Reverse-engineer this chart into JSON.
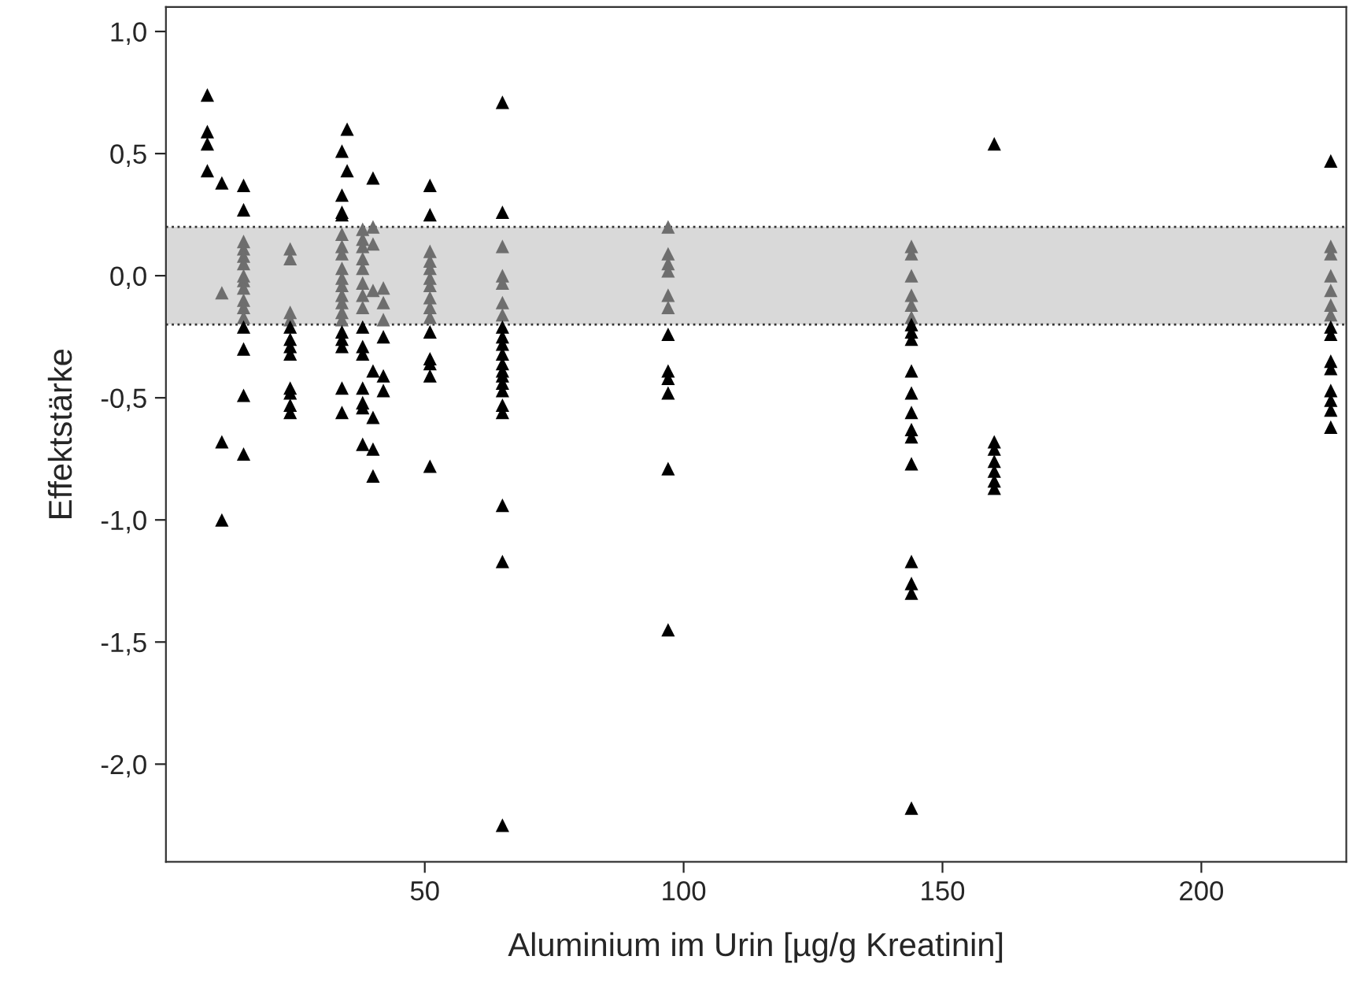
{
  "chart_data": {
    "type": "scatter",
    "xlabel": "Aluminium im Urin [µg/g Kreatinin]",
    "ylabel": "Effektstärke",
    "xlim": [
      0,
      228
    ],
    "ylim": [
      -2.4,
      1.1
    ],
    "xticks": [
      50,
      100,
      150,
      200
    ],
    "yticks": [
      {
        "value": 1.0,
        "label": "1,0"
      },
      {
        "value": 0.5,
        "label": "0,5"
      },
      {
        "value": 0.0,
        "label": "0,0"
      },
      {
        "value": -0.5,
        "label": "-0,5"
      },
      {
        "value": -1.0,
        "label": "-1,0"
      },
      {
        "value": -1.5,
        "label": "-1,5"
      },
      {
        "value": -2.0,
        "label": "-2,0"
      }
    ],
    "grid": false,
    "marker": "triangle",
    "bands": [
      {
        "axis": "y",
        "from": -0.2,
        "to": 0.2,
        "color": "#d9d9d9"
      }
    ],
    "ref_lines": [
      {
        "axis": "y",
        "value": 0.2,
        "color": "#333333",
        "line_style": "dotted"
      },
      {
        "axis": "y",
        "value": -0.2,
        "color": "#333333",
        "line_style": "dotted"
      }
    ],
    "series": [
      {
        "color": "#6e6e6e",
        "x": [
          10.8,
          15,
          15,
          15,
          15,
          15,
          15,
          15,
          15,
          15,
          15,
          24,
          24,
          24,
          24,
          34,
          34,
          34,
          34,
          34,
          34,
          34,
          34,
          34,
          34,
          38,
          38,
          38,
          38,
          38,
          38,
          38,
          38,
          40,
          40,
          40,
          42,
          42,
          42,
          51,
          51,
          51,
          51,
          51,
          51,
          51,
          51,
          65,
          65,
          65,
          65,
          65,
          97,
          97,
          97,
          97,
          97,
          97,
          144,
          144,
          144,
          144,
          144,
          144,
          225,
          225,
          225,
          225,
          225,
          225
        ],
        "values": [
          -0.07,
          0.14,
          0.11,
          0.08,
          0.05,
          0.0,
          -0.02,
          -0.05,
          -0.1,
          -0.13,
          -0.17,
          0.11,
          0.07,
          -0.15,
          -0.18,
          0.17,
          0.12,
          0.09,
          0.03,
          -0.01,
          -0.04,
          -0.08,
          -0.11,
          -0.15,
          -0.18,
          0.19,
          0.15,
          0.12,
          0.07,
          0.03,
          -0.03,
          -0.08,
          -0.13,
          0.2,
          0.13,
          -0.06,
          -0.05,
          -0.11,
          -0.18,
          0.1,
          0.06,
          0.03,
          -0.01,
          -0.04,
          -0.09,
          -0.13,
          -0.17,
          0.12,
          0.0,
          -0.03,
          -0.11,
          -0.16,
          0.2,
          0.09,
          0.05,
          0.02,
          -0.08,
          -0.13,
          0.12,
          0.09,
          0.0,
          -0.08,
          -0.12,
          -0.17,
          0.12,
          0.09,
          0.0,
          -0.06,
          -0.12,
          -0.16
        ]
      },
      {
        "color": "#000000",
        "x": [
          8,
          8,
          8,
          8,
          10.8,
          10.8,
          10.8,
          15,
          15,
          15,
          15,
          15,
          15,
          24,
          24,
          24,
          24,
          24,
          24,
          24,
          24,
          34,
          34,
          34,
          34,
          34,
          34,
          34,
          34,
          34,
          35,
          35,
          38,
          38,
          38,
          38,
          38,
          38,
          38,
          40,
          40,
          40,
          40,
          40,
          42,
          42,
          42,
          51,
          51,
          51,
          51,
          51,
          51,
          51,
          65,
          65,
          65,
          65,
          65,
          65,
          65,
          65,
          65,
          65,
          65,
          65,
          65,
          65,
          65,
          65,
          97,
          97,
          97,
          97,
          97,
          97,
          144,
          144,
          144,
          144,
          144,
          144,
          144,
          144,
          144,
          144,
          144,
          144,
          144,
          160,
          160,
          160,
          160,
          160,
          160,
          160,
          225,
          225,
          225,
          225,
          225,
          225,
          225,
          225,
          225
        ],
        "values": [
          0.74,
          0.59,
          0.54,
          0.43,
          0.38,
          -0.68,
          -1.0,
          0.37,
          0.27,
          -0.21,
          -0.3,
          -0.49,
          -0.73,
          -0.21,
          -0.26,
          -0.29,
          -0.32,
          -0.46,
          -0.48,
          -0.53,
          -0.56,
          0.51,
          0.33,
          0.26,
          0.25,
          -0.23,
          -0.26,
          -0.29,
          -0.46,
          -0.56,
          0.6,
          0.43,
          -0.21,
          -0.29,
          -0.32,
          -0.46,
          -0.52,
          -0.54,
          -0.69,
          0.4,
          -0.39,
          -0.58,
          -0.71,
          -0.82,
          -0.25,
          -0.41,
          -0.47,
          0.37,
          0.25,
          -0.23,
          -0.34,
          -0.36,
          -0.41,
          -0.78,
          0.71,
          0.26,
          -0.21,
          -0.25,
          -0.28,
          -0.32,
          -0.36,
          -0.39,
          -0.41,
          -0.44,
          -0.47,
          -0.53,
          -0.56,
          -0.94,
          -1.17,
          -2.25,
          -0.24,
          -0.39,
          -0.42,
          -0.48,
          -0.79,
          -1.45,
          -0.2,
          -0.23,
          -0.26,
          -0.39,
          -0.48,
          -0.56,
          -0.63,
          -0.66,
          -0.77,
          -1.17,
          -1.26,
          -1.3,
          -2.18,
          0.54,
          -0.68,
          -0.71,
          -0.76,
          -0.8,
          -0.84,
          -0.87,
          0.47,
          -0.21,
          -0.24,
          -0.35,
          -0.38,
          -0.47,
          -0.51,
          -0.55,
          -0.62
        ]
      }
    ]
  }
}
